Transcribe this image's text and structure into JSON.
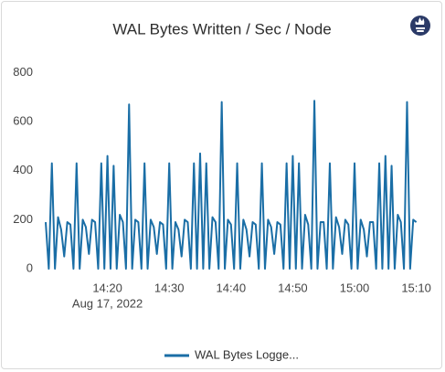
{
  "chart_data": {
    "type": "line",
    "title": "WAL Bytes Written / Sec / Node",
    "date_label": "Aug 17, 2022",
    "categories": [
      null,
      null,
      null,
      null,
      null,
      null,
      null,
      null,
      null,
      null,
      null,
      null,
      null,
      null,
      null,
      null,
      null,
      null,
      null,
      null,
      "14:20",
      null,
      null,
      null,
      null,
      null,
      null,
      null,
      null,
      null,
      null,
      null,
      null,
      null,
      null,
      null,
      null,
      null,
      null,
      null,
      "14:30",
      null,
      null,
      null,
      null,
      null,
      null,
      null,
      null,
      null,
      null,
      null,
      null,
      null,
      null,
      null,
      null,
      null,
      null,
      null,
      "14:40",
      null,
      null,
      null,
      null,
      null,
      null,
      null,
      null,
      null,
      null,
      null,
      null,
      null,
      null,
      null,
      null,
      null,
      null,
      null,
      "14:50",
      null,
      null,
      null,
      null,
      null,
      null,
      null,
      null,
      null,
      null,
      null,
      null,
      null,
      null,
      null,
      null,
      null,
      null,
      null,
      "15:00",
      null,
      null,
      null,
      null,
      null,
      null,
      null,
      null,
      null,
      null,
      null,
      null,
      null,
      null,
      null,
      null,
      null,
      null,
      null,
      "15:10"
    ],
    "series": [
      {
        "name": "WAL Bytes Logge...",
        "color": "#1a6ea6",
        "values": [
          190,
          0,
          430,
          0,
          210,
          160,
          50,
          190,
          180,
          0,
          430,
          0,
          200,
          170,
          60,
          200,
          190,
          0,
          430,
          0,
          460,
          0,
          420,
          0,
          220,
          190,
          0,
          670,
          0,
          200,
          190,
          0,
          430,
          0,
          200,
          170,
          60,
          190,
          180,
          0,
          430,
          0,
          190,
          160,
          50,
          200,
          190,
          0,
          430,
          0,
          470,
          0,
          430,
          0,
          210,
          190,
          0,
          680,
          0,
          200,
          180,
          0,
          430,
          0,
          200,
          160,
          50,
          190,
          180,
          0,
          430,
          0,
          200,
          170,
          60,
          190,
          180,
          0,
          430,
          0,
          460,
          0,
          430,
          0,
          220,
          180,
          0,
          685,
          0,
          190,
          190,
          0,
          430,
          0,
          210,
          170,
          60,
          200,
          180,
          0,
          430,
          0,
          200,
          160,
          50,
          190,
          190,
          0,
          430,
          0,
          460,
          0,
          420,
          0,
          220,
          190,
          0,
          680,
          0,
          200,
          190
        ]
      }
    ],
    "ylim": [
      0,
      850
    ],
    "yticks": [
      0,
      200,
      400,
      600,
      800
    ],
    "grid": false
  }
}
